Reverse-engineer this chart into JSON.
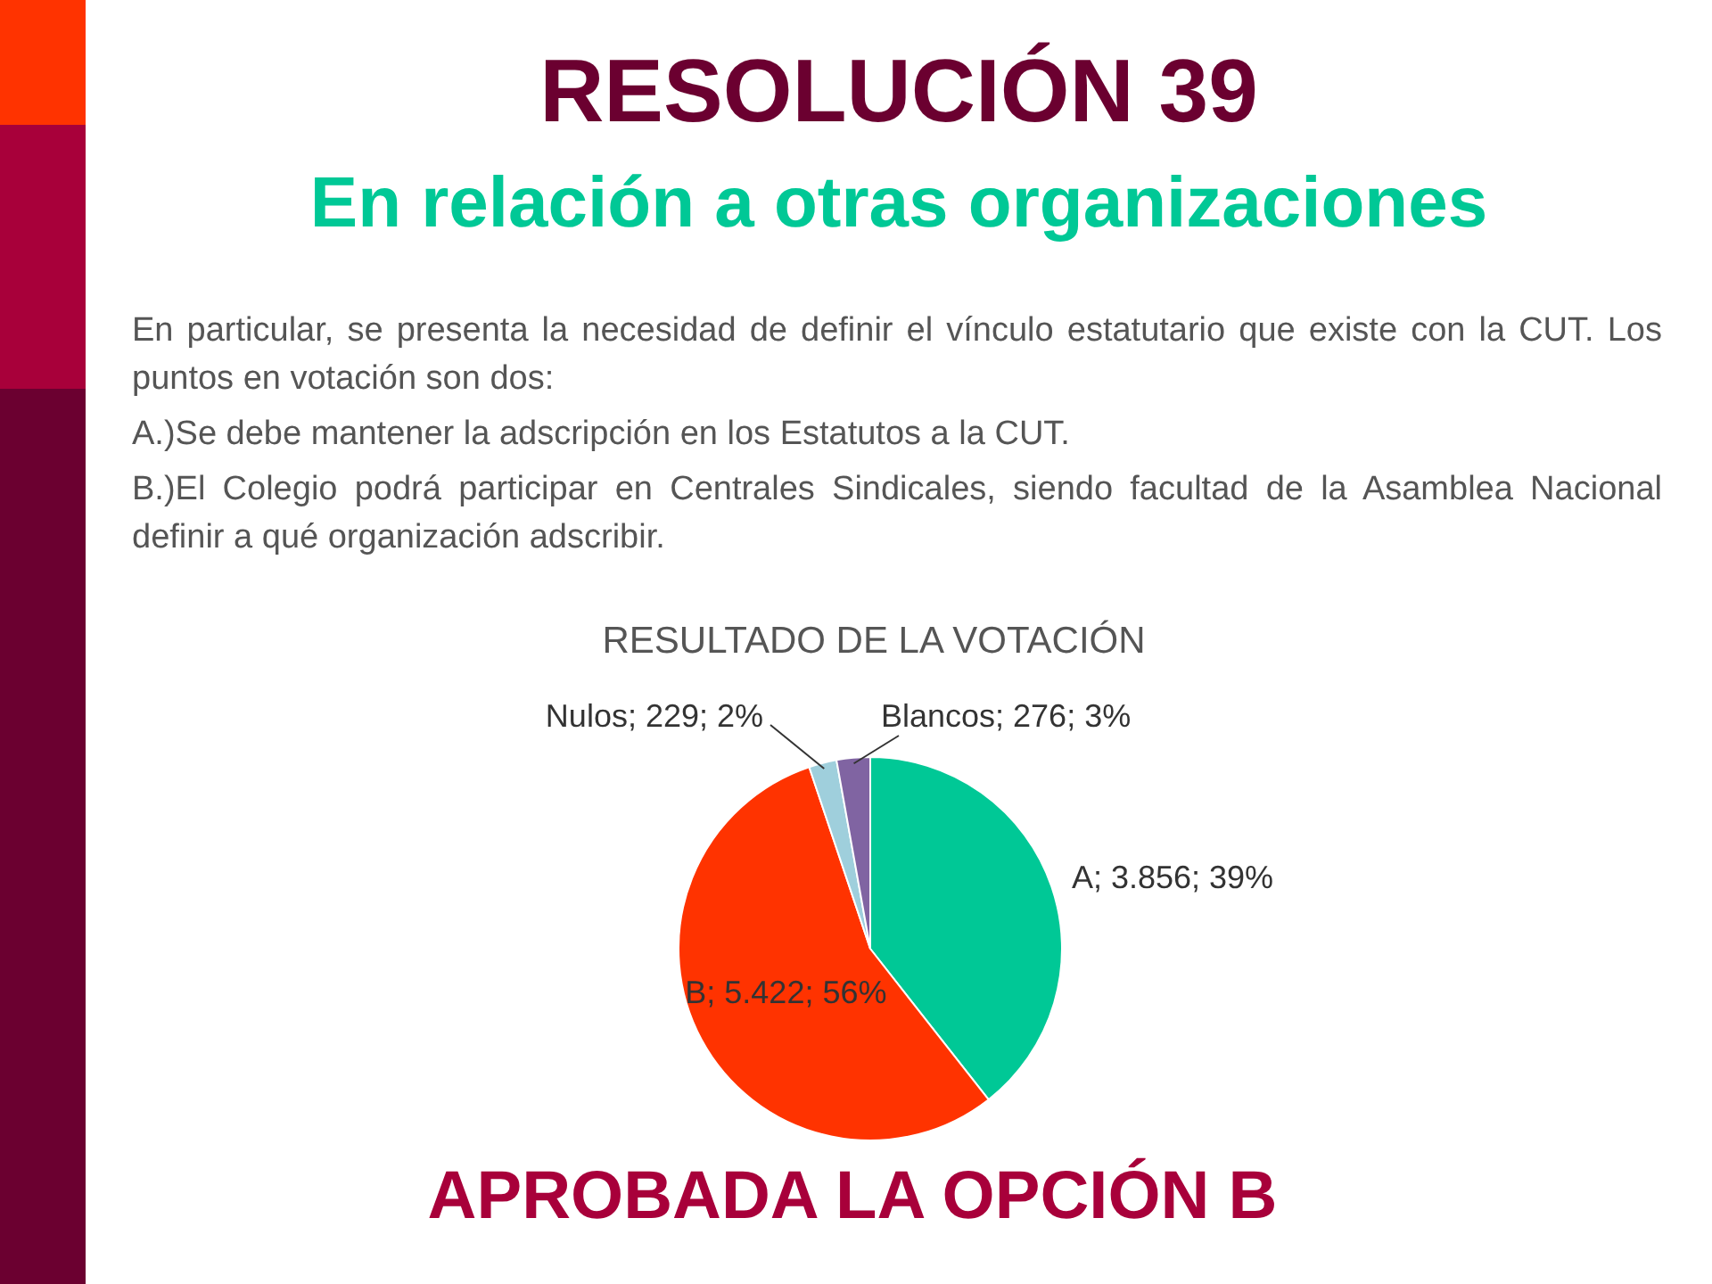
{
  "chart_data": {
    "type": "pie",
    "title": "RESOLUCIÓN 39",
    "subtitle": "En relación a otras organizaciones",
    "annotations": [
      "En particular, se presenta la necesidad de definir el vínculo  estatutario que existe con la CUT. Los puntos en votación son dos:",
      "A.)Se debe mantener la adscripción en los Estatutos a la CUT.",
      "B.)El Colegio podrá  participar  en  Centrales  Sindicales, siendo facultad de la  Asamblea Nacional definir a qué organización adscribir.",
      "RESULTADO DE LA VOTACIÓN",
      "APROBADA LA OPCIÓN B"
    ],
    "categories": [
      "A",
      "B",
      "Nulos",
      "Blancos"
    ],
    "values": [
      3856,
      5422,
      229,
      276
    ],
    "colors": [
      "#00c896",
      "#ff3300",
      "#9fcfdc",
      "#8064a2"
    ],
    "value_labels": [
      "; 3.856; 39%",
      "; 5.422; 56%",
      "; 229; 2%",
      "; 276; 3%"
    ],
    "legend": false
  }
}
